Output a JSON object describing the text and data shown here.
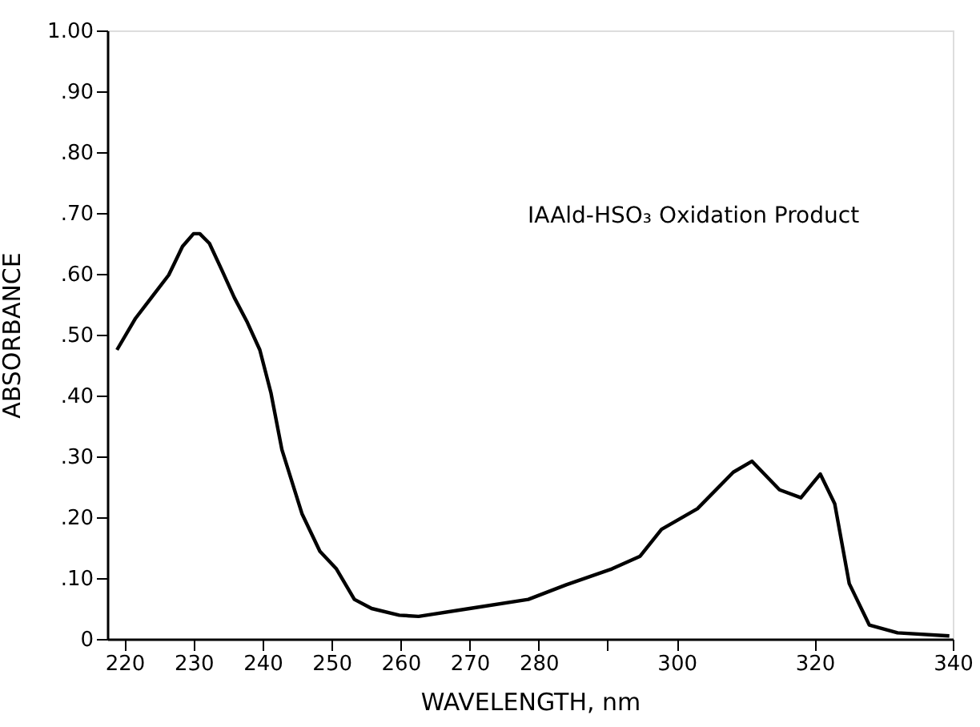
{
  "chart_data": {
    "type": "line",
    "xlabel": "WAVELENGTH, nm",
    "ylabel": "ABSORBANCE",
    "annotations": [
      "IAAld-HSO₃ Oxidation Product"
    ],
    "xlim": [
      217.5,
      340
    ],
    "xticks": [
      220,
      230,
      240,
      250,
      260,
      270,
      280,
      {
        "value": 290,
        "label": null
      },
      300,
      320,
      340
    ],
    "ylim": [
      0,
      1.0
    ],
    "yticks": [
      {
        "value": 0,
        "label": "0"
      },
      {
        "value": 0.1,
        "label": ".10"
      },
      {
        "value": 0.2,
        "label": ".20"
      },
      {
        "value": 0.3,
        "label": ".30"
      },
      {
        "value": 0.4,
        "label": ".40"
      },
      {
        "value": 0.5,
        "label": ".50"
      },
      {
        "value": 0.6,
        "label": ".60"
      },
      {
        "value": 0.7,
        "label": ".70"
      },
      {
        "value": 0.8,
        "label": ".80"
      },
      {
        "value": 0.9,
        "label": ".90"
      },
      {
        "value": 1.0,
        "label": "1.00"
      }
    ],
    "grid": false,
    "marker": "none",
    "line_style": "solid",
    "series": [
      {
        "color": "#000000",
        "x": [
          218.9,
          221.6,
          223.9,
          226.4,
          227.3,
          228.4,
          230.0,
          230.9,
          232.3,
          234.1,
          235.9,
          237.8,
          239.6,
          241.2,
          242.8,
          245.7,
          248.3,
          250.7,
          253.3,
          255.8,
          259.8,
          262.6,
          270.0,
          278.5,
          284.0,
          290.6,
          294.7,
          297.8,
          303.0,
          308.2,
          310.9,
          314.9,
          318.0,
          320.8,
          322.9,
          325.0,
          327.9,
          332.0,
          339.5
        ],
        "values": [
          0.475,
          0.527,
          0.561,
          0.598,
          0.619,
          0.645,
          0.666,
          0.666,
          0.65,
          0.606,
          0.561,
          0.52,
          0.475,
          0.405,
          0.311,
          0.206,
          0.144,
          0.115,
          0.065,
          0.05,
          0.039,
          0.037,
          0.05,
          0.065,
          0.089,
          0.115,
          0.136,
          0.18,
          0.214,
          0.274,
          0.292,
          0.245,
          0.232,
          0.271,
          0.222,
          0.091,
          0.023,
          0.01,
          0.005
        ]
      }
    ]
  }
}
